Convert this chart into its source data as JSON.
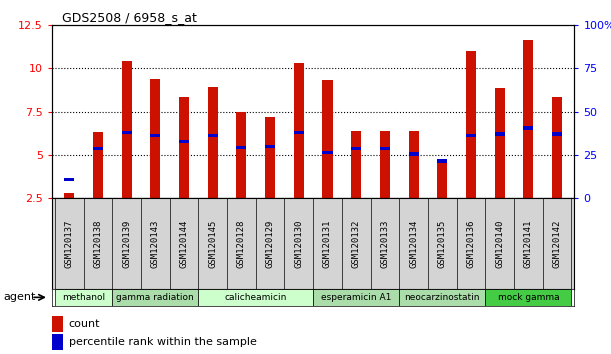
{
  "title": "GDS2508 / 6958_s_at",
  "samples": [
    "GSM120137",
    "GSM120138",
    "GSM120139",
    "GSM120143",
    "GSM120144",
    "GSM120145",
    "GSM120128",
    "GSM120129",
    "GSM120130",
    "GSM120131",
    "GSM120132",
    "GSM120133",
    "GSM120134",
    "GSM120135",
    "GSM120136",
    "GSM120140",
    "GSM120141",
    "GSM120142"
  ],
  "count_values": [
    2.8,
    6.3,
    10.4,
    9.35,
    8.35,
    8.9,
    7.45,
    7.2,
    10.3,
    9.3,
    6.4,
    6.4,
    6.4,
    4.65,
    11.0,
    8.85,
    11.65,
    8.35
  ],
  "percentile_values": [
    3.6,
    5.35,
    6.3,
    6.1,
    5.75,
    6.1,
    5.4,
    5.5,
    6.3,
    5.15,
    5.35,
    5.35,
    5.05,
    4.65,
    6.1,
    6.2,
    6.55,
    6.2
  ],
  "groups": [
    {
      "label": "methanol",
      "start": 0,
      "end": 1,
      "color": "#ccffcc"
    },
    {
      "label": "gamma radiation",
      "start": 2,
      "end": 4,
      "color": "#aaddaa"
    },
    {
      "label": "calicheamicin",
      "start": 5,
      "end": 8,
      "color": "#ccffcc"
    },
    {
      "label": "esperamicin A1",
      "start": 9,
      "end": 11,
      "color": "#aaddaa"
    },
    {
      "label": "neocarzinostatin",
      "start": 12,
      "end": 14,
      "color": "#aaddaa"
    },
    {
      "label": "mock gamma",
      "start": 15,
      "end": 17,
      "color": "#44cc44"
    }
  ],
  "ylim_left": [
    2.5,
    12.5
  ],
  "ylim_right": [
    0,
    100
  ],
  "yticks_left": [
    2.5,
    5.0,
    7.5,
    10.0,
    12.5
  ],
  "yticks_right": [
    0,
    25,
    50,
    75,
    100
  ],
  "bar_color": "#cc1100",
  "percentile_color": "#0000cc",
  "background_color": "#ffffff",
  "bar_width": 0.35,
  "agent_label": "agent",
  "legend_count": "count",
  "legend_percentile": "percentile rank within the sample"
}
